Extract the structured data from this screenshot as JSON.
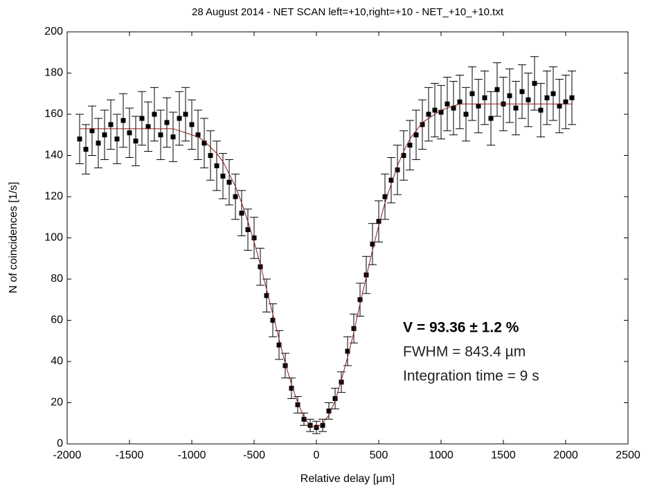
{
  "chart_data": {
    "type": "scatter",
    "title": "28 August 2014 - NET SCAN left=+10,right=+10 - NET_+10_+10.txt",
    "xlabel": "Relative delay [µm]",
    "ylabel": "N of coincidences [1/s]",
    "annotations": [
      {
        "text": "V = 93.36 ± 1.2 %",
        "bold": true
      },
      {
        "text": "FWHM = 843.4 µm",
        "bold": false
      },
      {
        "text": "Integration time = 9 s",
        "bold": false
      }
    ],
    "xlim": [
      -2000,
      2500
    ],
    "xticks": [
      -2000,
      -1500,
      -1000,
      -500,
      0,
      500,
      1000,
      1500,
      2000,
      2500
    ],
    "ylim": [
      0,
      200
    ],
    "yticks": [
      0,
      20,
      40,
      60,
      80,
      100,
      120,
      140,
      160,
      180,
      200
    ],
    "x": [
      -1900,
      -1850,
      -1800,
      -1750,
      -1700,
      -1650,
      -1600,
      -1550,
      -1500,
      -1450,
      -1400,
      -1350,
      -1300,
      -1250,
      -1200,
      -1150,
      -1100,
      -1050,
      -1000,
      -950,
      -900,
      -850,
      -800,
      -750,
      -700,
      -650,
      -600,
      -550,
      -500,
      -450,
      -400,
      -350,
      -300,
      -250,
      -200,
      -150,
      -100,
      -50,
      0,
      50,
      100,
      150,
      200,
      250,
      300,
      350,
      400,
      450,
      500,
      550,
      600,
      650,
      700,
      750,
      800,
      850,
      900,
      950,
      1000,
      1050,
      1100,
      1150,
      1200,
      1250,
      1300,
      1350,
      1400,
      1450,
      1500,
      1550,
      1600,
      1650,
      1700,
      1750,
      1800,
      1850,
      1900,
      1950,
      2000,
      2050
    ],
    "series": [
      {
        "type": "scatter",
        "color": "#000000",
        "values": [
          148,
          143,
          152,
          146,
          150,
          155,
          148,
          157,
          151,
          147,
          158,
          154,
          160,
          150,
          156,
          149,
          158,
          160,
          155,
          150,
          146,
          140,
          135,
          130,
          127,
          120,
          112,
          104,
          100,
          86,
          72,
          60,
          48,
          38,
          27,
          19,
          12,
          9,
          8,
          9,
          16,
          22,
          30,
          45,
          56,
          70,
          82,
          97,
          108,
          120,
          128,
          133,
          140,
          145,
          150,
          155,
          160,
          162,
          161,
          165,
          163,
          166,
          160,
          170,
          164,
          168,
          158,
          172,
          165,
          169,
          163,
          171,
          167,
          175,
          162,
          168,
          170,
          164,
          166,
          168
        ],
        "errors": [
          12,
          12,
          12,
          12,
          12,
          12,
          12,
          13,
          12,
          12,
          13,
          12,
          13,
          12,
          12,
          12,
          13,
          13,
          12,
          12,
          12,
          12,
          12,
          11,
          11,
          11,
          11,
          10,
          10,
          9,
          8,
          8,
          7,
          6,
          5,
          4,
          3,
          3,
          3,
          3,
          4,
          5,
          5,
          7,
          7,
          8,
          9,
          10,
          10,
          11,
          11,
          12,
          12,
          12,
          12,
          12,
          13,
          13,
          13,
          13,
          13,
          13,
          13,
          13,
          13,
          13,
          13,
          13,
          13,
          13,
          13,
          13,
          13,
          13,
          13,
          13,
          13,
          13,
          13,
          13
        ]
      },
      {
        "type": "line",
        "color": "#8b1a1a",
        "values": [
          153,
          153,
          153,
          153,
          153,
          153,
          153,
          153,
          153,
          153,
          153,
          153,
          153,
          153,
          153,
          153,
          152,
          151,
          150,
          149,
          147,
          144,
          141,
          137,
          131,
          125,
          117,
          108,
          98,
          87,
          75,
          63,
          51,
          39,
          29,
          20,
          13,
          9,
          8,
          10,
          14,
          21,
          31,
          42,
          54,
          68,
          81,
          94,
          106,
          117,
          126,
          135,
          142,
          148,
          152,
          156,
          158,
          160,
          162,
          163,
          164,
          165,
          165,
          165,
          165,
          165,
          165,
          165,
          165,
          165,
          165,
          165,
          165,
          165,
          165,
          165,
          165,
          165,
          165,
          165
        ]
      }
    ]
  }
}
